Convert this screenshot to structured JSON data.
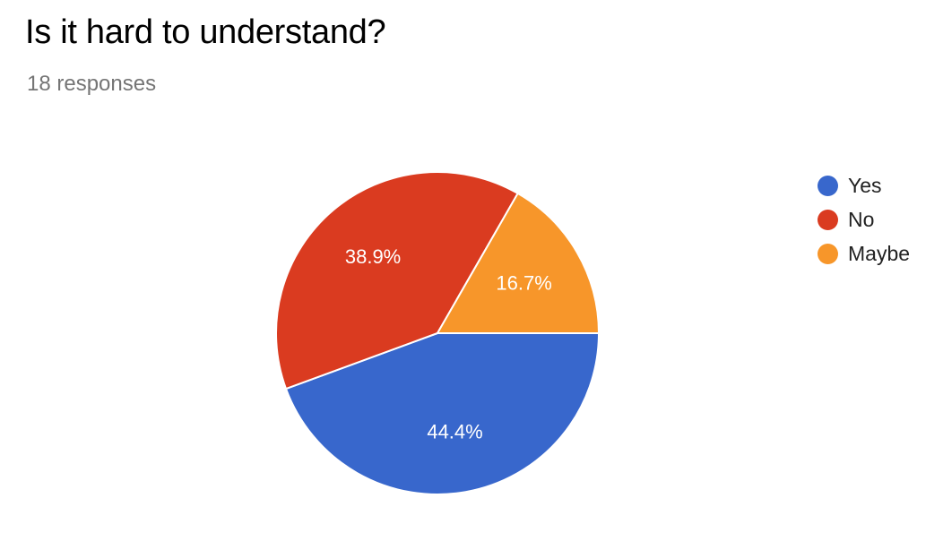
{
  "question": {
    "title": "Is it hard to understand?",
    "responses": "18 responses"
  },
  "chart_data": {
    "type": "pie",
    "title": "Is it hard to understand?",
    "subtitle": "18 responses",
    "total": 18,
    "legend_position": "right",
    "slices": [
      {
        "label": "Yes",
        "value": 44.4,
        "display": "44.4%",
        "color": "#3867CC"
      },
      {
        "label": "No",
        "value": 38.9,
        "display": "38.9%",
        "color": "#DA3B20"
      },
      {
        "label": "Maybe",
        "value": 16.7,
        "display": "16.7%",
        "color": "#F7962A"
      }
    ]
  }
}
